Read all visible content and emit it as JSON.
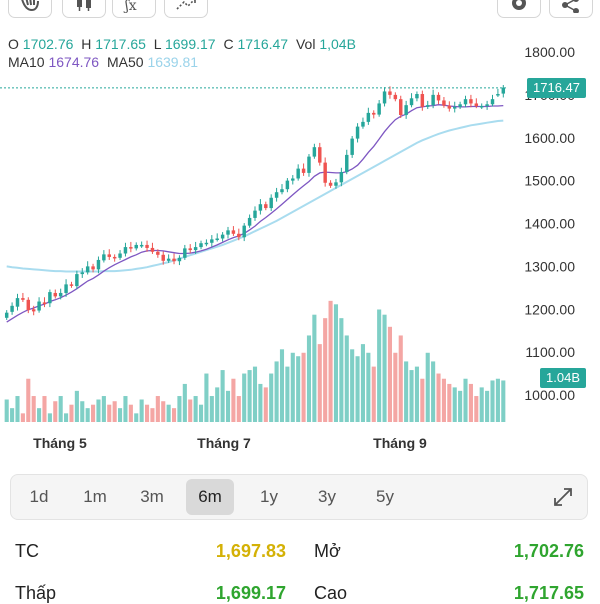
{
  "toolbar": {
    "icons": [
      "hand-icon",
      "candlestick-icon",
      "indicator-fx-icon",
      "drawing-tool-icon",
      "settings-icon",
      "share-icon"
    ]
  },
  "ohlc": {
    "o_label": "O",
    "o_value": "1702.76",
    "h_label": "H",
    "h_value": "1717.65",
    "l_label": "L",
    "l_value": "1699.17",
    "c_label": "C",
    "c_value": "1716.47",
    "vol_label": "Vol",
    "vol_value": "1,04B"
  },
  "ma": {
    "ma10_label": "MA10",
    "ma10_value": "1674.76",
    "ma50_label": "MA50",
    "ma50_value": "1639.81"
  },
  "current_price_label": "1716.47",
  "current_volume_label": "1.04B",
  "colors": {
    "up": "#26a69a",
    "down": "#ef5350",
    "ma10": "#7e57c2",
    "ma50": "#a9dcef",
    "yellow": "#d4b106",
    "green": "#2fa52f"
  },
  "chart_data": {
    "type": "candlestick",
    "price_axis": {
      "ticks": [
        "1800.00",
        "1700.00",
        "1600.00",
        "1500.00",
        "1400.00",
        "1300.00",
        "1200.00",
        "1100.00",
        "1000.00"
      ],
      "range": [
        967,
        1863
      ]
    },
    "x_ticks": [
      "Tháng 5",
      "Tháng 7",
      "Tháng 9"
    ],
    "last_close": 1716.47,
    "ma10_last": 1674.76,
    "ma50_last": 1639.81,
    "volume_last": "1.04B",
    "closes": [
      1192,
      1208,
      1226,
      1222,
      1198,
      1195,
      1218,
      1212,
      1240,
      1230,
      1238,
      1258,
      1255,
      1282,
      1286,
      1300,
      1293,
      1315,
      1328,
      1322,
      1320,
      1330,
      1345,
      1342,
      1350,
      1350,
      1343,
      1334,
      1327,
      1313,
      1318,
      1312,
      1320,
      1342,
      1338,
      1345,
      1354,
      1355,
      1363,
      1365,
      1374,
      1384,
      1376,
      1368,
      1395,
      1413,
      1430,
      1445,
      1436,
      1460,
      1473,
      1480,
      1500,
      1505,
      1528,
      1518,
      1556,
      1578,
      1542,
      1495,
      1488,
      1496,
      1520,
      1560,
      1598,
      1626,
      1637,
      1658,
      1654,
      1680,
      1708,
      1700,
      1690,
      1653,
      1676,
      1692,
      1702,
      1672,
      1676,
      1700,
      1687,
      1675,
      1668,
      1672,
      1678,
      1690,
      1680,
      1674,
      1674,
      1678,
      1690,
      1702,
      1717
    ],
    "opens": [
      1180,
      1194,
      1206,
      1226,
      1222,
      1200,
      1197,
      1216,
      1214,
      1238,
      1230,
      1238,
      1258,
      1254,
      1282,
      1286,
      1300,
      1293,
      1314,
      1328,
      1322,
      1320,
      1330,
      1345,
      1342,
      1350,
      1350,
      1343,
      1334,
      1327,
      1313,
      1318,
      1312,
      1320,
      1342,
      1338,
      1345,
      1354,
      1355,
      1363,
      1365,
      1374,
      1384,
      1376,
      1368,
      1395,
      1413,
      1430,
      1445,
      1436,
      1460,
      1473,
      1480,
      1500,
      1505,
      1528,
      1518,
      1556,
      1578,
      1542,
      1495,
      1488,
      1496,
      1520,
      1560,
      1598,
      1626,
      1637,
      1658,
      1654,
      1680,
      1708,
      1700,
      1690,
      1653,
      1676,
      1692,
      1702,
      1672,
      1676,
      1700,
      1687,
      1675,
      1668,
      1672,
      1678,
      1690,
      1680,
      1674,
      1674,
      1678,
      1702,
      1703
    ],
    "ma10": [
      1170,
      1178,
      1186,
      1193,
      1199,
      1203,
      1208,
      1212,
      1218,
      1222,
      1227,
      1233,
      1240,
      1248,
      1257,
      1266,
      1272,
      1280,
      1289,
      1297,
      1304,
      1310,
      1316,
      1322,
      1327,
      1333,
      1336,
      1337,
      1337,
      1336,
      1334,
      1332,
      1330,
      1330,
      1331,
      1333,
      1336,
      1340,
      1345,
      1350,
      1356,
      1362,
      1367,
      1371,
      1377,
      1385,
      1394,
      1405,
      1414,
      1424,
      1434,
      1445,
      1456,
      1467,
      1478,
      1488,
      1498,
      1510,
      1518,
      1520,
      1519,
      1518,
      1518,
      1521,
      1527,
      1536,
      1550,
      1566,
      1580,
      1597,
      1614,
      1629,
      1642,
      1650,
      1655,
      1663,
      1670,
      1672,
      1674,
      1675,
      1677,
      1676,
      1674,
      1673,
      1672,
      1672,
      1673,
      1673,
      1673,
      1673,
      1674,
      1674,
      1675
    ],
    "ma50": [
      1300,
      1298,
      1297,
      1295,
      1294,
      1293,
      1292,
      1291,
      1290,
      1289,
      1289,
      1288,
      1288,
      1288,
      1288,
      1288,
      1288,
      1288,
      1289,
      1289,
      1289,
      1290,
      1291,
      1292,
      1294,
      1296,
      1298,
      1301,
      1304,
      1307,
      1310,
      1314,
      1318,
      1322,
      1326,
      1330,
      1334,
      1338,
      1342,
      1346,
      1350,
      1355,
      1360,
      1365,
      1370,
      1376,
      1382,
      1388,
      1394,
      1400,
      1406,
      1413,
      1420,
      1427,
      1434,
      1441,
      1448,
      1455,
      1462,
      1469,
      1476,
      1483,
      1490,
      1497,
      1504,
      1511,
      1518,
      1525,
      1532,
      1539,
      1546,
      1553,
      1560,
      1567,
      1574,
      1581,
      1588,
      1594,
      1599,
      1604,
      1609,
      1613,
      1617,
      1620,
      1623,
      1626,
      1629,
      1631,
      1633,
      1635,
      1637,
      1639,
      1640
    ],
    "volumes": [
      0.93,
      0.88,
      0.95,
      0.85,
      1.05,
      0.95,
      0.88,
      0.95,
      0.85,
      0.92,
      0.95,
      0.85,
      0.9,
      0.98,
      0.92,
      0.88,
      0.9,
      0.93,
      0.95,
      0.9,
      0.92,
      0.88,
      0.95,
      0.9,
      0.85,
      0.93,
      0.9,
      0.88,
      0.95,
      0.92,
      0.9,
      0.88,
      0.95,
      1.02,
      0.93,
      0.95,
      0.9,
      1.08,
      0.95,
      1.0,
      1.1,
      0.98,
      1.05,
      0.95,
      1.08,
      1.1,
      1.12,
      1.02,
      1.0,
      1.08,
      1.15,
      1.22,
      1.12,
      1.2,
      1.18,
      1.2,
      1.3,
      1.42,
      1.25,
      1.4,
      1.5,
      1.48,
      1.4,
      1.3,
      1.22,
      1.18,
      1.25,
      1.2,
      1.12,
      1.45,
      1.42,
      1.35,
      1.2,
      1.3,
      1.15,
      1.1,
      1.12,
      1.05,
      1.2,
      1.15,
      1.08,
      1.05,
      1.02,
      1.0,
      0.98,
      1.05,
      1.02,
      0.95,
      1.0,
      0.98,
      1.04,
      1.05,
      1.04
    ]
  },
  "timeframes": {
    "items": [
      "1d",
      "1m",
      "3m",
      "6m",
      "1y",
      "3y",
      "5y"
    ],
    "active": "6m"
  },
  "stats": {
    "tc_label": "TC",
    "tc_value": "1,697.83",
    "open_label": "Mở",
    "open_value": "1,702.76",
    "low_label": "Thấp",
    "low_value": "1,699.17",
    "high_label": "Cao",
    "high_value": "1,717.65"
  }
}
